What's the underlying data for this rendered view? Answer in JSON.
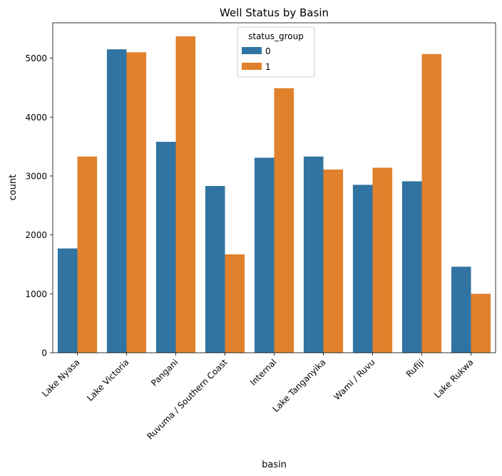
{
  "chart_data": {
    "type": "bar",
    "title": "Well Status by Basin",
    "xlabel": "basin",
    "ylabel": "count",
    "ylim": [
      0,
      5600
    ],
    "yticks": [
      0,
      1000,
      2000,
      3000,
      4000,
      5000
    ],
    "categories": [
      "Lake Nyasa",
      "Lake Victoria",
      "Pangani",
      "Ruvuma / Southern Coast",
      "Internal",
      "Lake Tanganyika",
      "Wami / Ruvu",
      "Rufiji",
      "Lake Rukwa"
    ],
    "legend": {
      "title": "status_group",
      "placement": "upper-center"
    },
    "series": [
      {
        "name": "0",
        "color": "#3274a1",
        "values": [
          1770,
          5150,
          3580,
          2830,
          3310,
          3330,
          2850,
          2910,
          1460
        ]
      },
      {
        "name": "1",
        "color": "#e1812c",
        "values": [
          3330,
          5100,
          5370,
          1670,
          4490,
          3110,
          3140,
          5070,
          1000
        ]
      }
    ],
    "grid": false
  }
}
